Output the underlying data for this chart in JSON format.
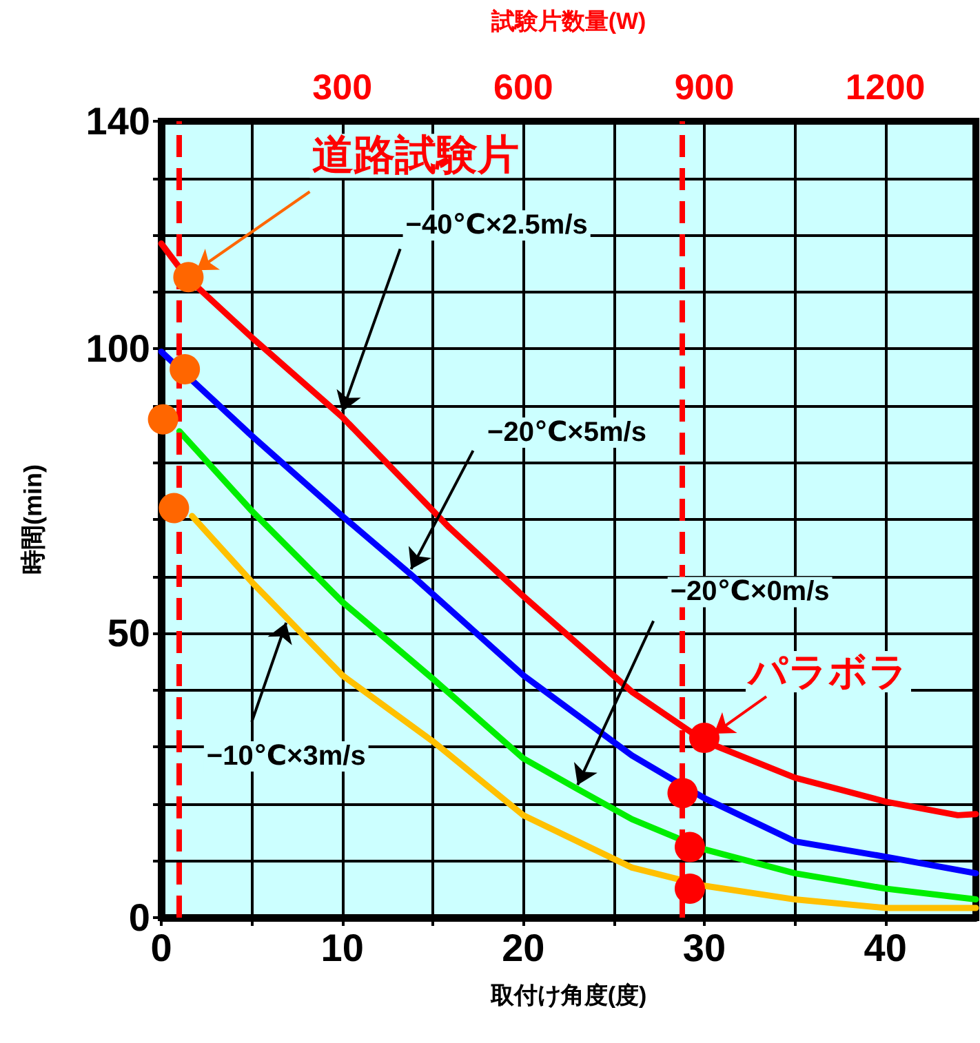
{
  "chart_data": {
    "type": "line",
    "xlabel": "取付け角度(度)",
    "ylabel": "時間(min)",
    "x2label": "試験片数量(W)",
    "xlim": [
      0,
      45
    ],
    "xticks": [
      0,
      {
        "value": 5,
        "label": null
      },
      10,
      {
        "value": 15,
        "label": null
      },
      20,
      {
        "value": 25,
        "label": null
      },
      30,
      {
        "value": 35,
        "label": null
      },
      40
    ],
    "ylim": [
      0,
      140
    ],
    "yticks": [
      0,
      {
        "value": 10,
        "label": null
      },
      {
        "value": 20,
        "label": null
      },
      {
        "value": 30,
        "label": null
      },
      {
        "value": 40,
        "label": null
      },
      50,
      {
        "value": 60,
        "label": null
      },
      {
        "value": 70,
        "label": null
      },
      {
        "value": 80,
        "label": null
      },
      {
        "value": 90,
        "label": null
      },
      100,
      {
        "value": 110,
        "label": null
      },
      {
        "value": 120,
        "label": null
      },
      {
        "value": 130,
        "label": null
      },
      140
    ],
    "x2lim": [
      0,
      1350
    ],
    "x2ticks": [
      300,
      600,
      900,
      1200
    ],
    "grid": true,
    "marker": "none",
    "series": [
      {
        "color": "#ff0000",
        "x": [
          0,
          1.4,
          5,
          10,
          15.9,
          20,
          26,
          30,
          35,
          40,
          44,
          45
        ],
        "values": [
          118.5,
          112.6,
          102,
          88,
          68.6,
          56.5,
          39.7,
          31,
          24.6,
          20.4,
          18,
          18.2
        ]
      },
      {
        "color": "#0000ff",
        "x": [
          0,
          5,
          10,
          13.8,
          20,
          26,
          30,
          35,
          40,
          45
        ],
        "values": [
          99.5,
          84.7,
          70.6,
          60.3,
          42.6,
          28.5,
          21,
          13.4,
          10.7,
          7.8
        ]
      },
      {
        "color": "#00ee00",
        "x": [
          1,
          5,
          10,
          15,
          20,
          23,
          26,
          30,
          35,
          40,
          45
        ],
        "values": [
          85.5,
          71.5,
          55.5,
          42,
          28,
          22.6,
          17.3,
          12,
          7.8,
          5.1,
          3.2
        ]
      },
      {
        "color": "#ffc000",
        "x": [
          1.7,
          5,
          6.9,
          10,
          15,
          20,
          26,
          30,
          35,
          40,
          45
        ],
        "values": [
          70.6,
          59,
          52.8,
          42.6,
          31,
          18,
          8.8,
          5.6,
          3.2,
          1.7,
          1.7
        ]
      },
      {
        "type": "scatter",
        "marker": "circle",
        "color": "#ff6600",
        "x": [
          1.5,
          1.3,
          0.1,
          0.7
        ],
        "values": [
          112.6,
          96.4,
          87.6,
          72
        ]
      },
      {
        "type": "scatter",
        "marker": "circle",
        "color": "#ff0000",
        "x": [
          30,
          28.8,
          29.2,
          29.2
        ],
        "values": [
          31.6,
          21.9,
          12.4,
          5.1
        ]
      }
    ],
    "ref_lines": [
      {
        "axis": "x",
        "value": 1,
        "color": "#ff0000",
        "line_style": "dashed"
      },
      {
        "axis": "x",
        "value": 28.8,
        "color": "#ff0000",
        "line_style": "dashed"
      }
    ],
    "annotations": [
      {
        "text": "道路試験片",
        "x": 1.5,
        "y": 112.6
      },
      {
        "text": "−40℃×2.5m/s",
        "x": 10,
        "y": 88
      },
      {
        "text": "−20℃×5m/s",
        "x": 13.8,
        "y": 60.3
      },
      {
        "text": "−20℃×0m/s",
        "x": 23,
        "y": 22.6
      },
      {
        "text": "−10℃×3m/s",
        "x": 6.9,
        "y": 52.8
      },
      {
        "text": "パラボラ",
        "x": 30,
        "y": 31.6
      }
    ]
  }
}
